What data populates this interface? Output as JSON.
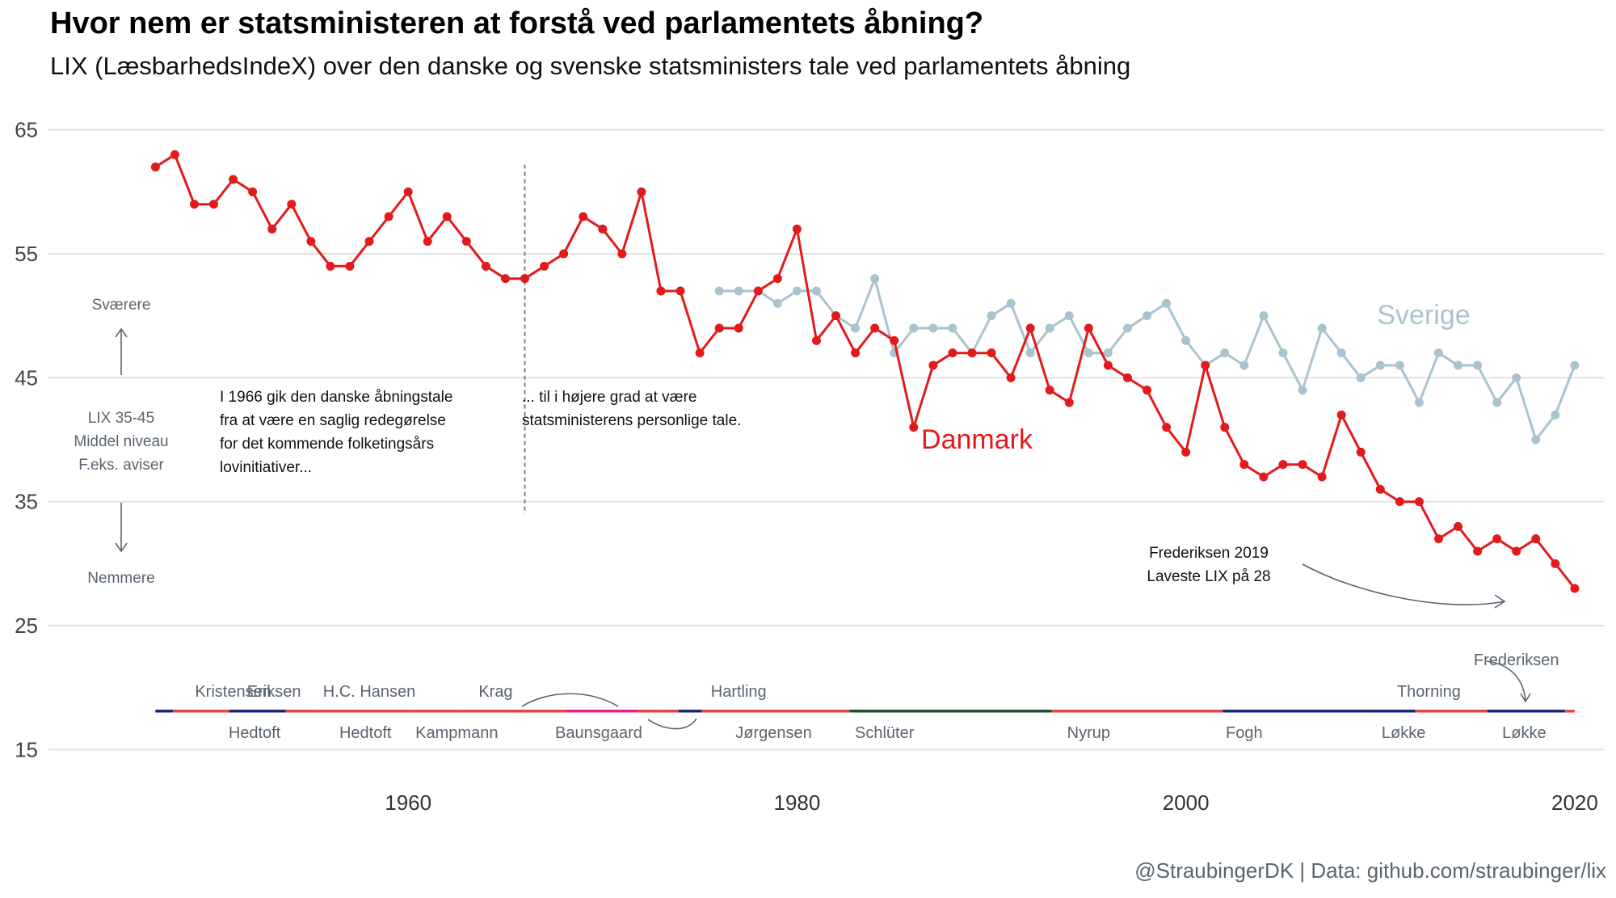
{
  "header": {
    "title": "Hvor nem er statsministeren at forstå ved parlamentets åbning?",
    "subtitle": "LIX (LæsbarhedsIndeX) over den danske og svenske statsministers tale ved parlamentets åbning"
  },
  "caption": "@StraubingerDK | Data: github.com/straubinger/lix",
  "colors": {
    "danmark": "#e31a1c",
    "sverige": "#a9c3cf",
    "social_demokrat": "#e8453c",
    "venstre": "#1a237e",
    "radikale": "#e91e8c",
    "konservative": "#1b4d2e"
  },
  "chart_data": {
    "type": "line",
    "title": "Hvor nem er statsministeren at forstå ved parlamentets åbning?",
    "subtitle": "LIX (LæsbarhedsIndeX) over den danske og svenske statsministers tale ved parlamentets åbning",
    "xlabel": "",
    "ylabel": "",
    "xlim": [
      1941.5,
      2021.5
    ],
    "ylim": [
      13,
      67
    ],
    "y_ticks": [
      15,
      25,
      35,
      45,
      55,
      65
    ],
    "x_ticks": [
      1960,
      1980,
      2000,
      2020
    ],
    "grid": true,
    "series": [
      {
        "name": "Danmark",
        "color": "#e31a1c",
        "x": [
          1947,
          1948,
          1949,
          1950,
          1951,
          1952,
          1953,
          1954,
          1955,
          1956,
          1957,
          1958,
          1959,
          1960,
          1961,
          1962,
          1963,
          1964,
          1965,
          1966,
          1967,
          1968,
          1969,
          1970,
          1971,
          1972,
          1973,
          1974,
          1975,
          1976,
          1977,
          1978,
          1979,
          1980,
          1981,
          1982,
          1983,
          1984,
          1985,
          1986,
          1987,
          1988,
          1989,
          1990,
          1991,
          1992,
          1993,
          1994,
          1995,
          1996,
          1997,
          1998,
          1999,
          2000,
          2001,
          2002,
          2003,
          2004,
          2005,
          2006,
          2007,
          2008,
          2009,
          2010,
          2011,
          2012,
          2013,
          2014,
          2015,
          2016,
          2017,
          2018,
          2019,
          2020
        ],
        "values": [
          62,
          63,
          59,
          59,
          61,
          60,
          57,
          59,
          56,
          54,
          54,
          56,
          58,
          60,
          56,
          58,
          56,
          54,
          53,
          53,
          54,
          55,
          58,
          57,
          55,
          60,
          52,
          52,
          47,
          49,
          49,
          52,
          53,
          57,
          48,
          50,
          47,
          49,
          48,
          41,
          46,
          47,
          47,
          47,
          45,
          49,
          44,
          43,
          49,
          46,
          45,
          44,
          41,
          39,
          46,
          41,
          38,
          37,
          38,
          38,
          37,
          42,
          39,
          36,
          35,
          35,
          32,
          33,
          31,
          32,
          31,
          32,
          30,
          28
        ]
      },
      {
        "name": "Sverige",
        "color": "#a9c3cf",
        "x": [
          1976,
          1977,
          1978,
          1979,
          1980,
          1981,
          1982,
          1983,
          1984,
          1985,
          1986,
          1987,
          1988,
          1989,
          1990,
          1991,
          1992,
          1993,
          1994,
          1995,
          1996,
          1997,
          1998,
          1999,
          2000,
          2001,
          2002,
          2003,
          2004,
          2005,
          2006,
          2007,
          2008,
          2009,
          2010,
          2011,
          2012,
          2013,
          2014,
          2015,
          2016,
          2017,
          2018,
          2019,
          2020
        ],
        "values": [
          52,
          52,
          52,
          51,
          52,
          52,
          50,
          49,
          53,
          47,
          49,
          49,
          49,
          47,
          50,
          51,
          47,
          49,
          50,
          47,
          47,
          49,
          50,
          51,
          48,
          46,
          47,
          46,
          50,
          47,
          44,
          49,
          47,
          45,
          46,
          46,
          43,
          47,
          46,
          46,
          43,
          45,
          40,
          42,
          46
        ]
      }
    ],
    "annotations": {
      "danmark_label": "Danmark",
      "sverige_label": "Sverige",
      "note_left": [
        "I 1966 gik den danske åbningstale",
        "fra at være en saglig redegørelse",
        "for det kommende folketingsårs",
        "lovinitiativer..."
      ],
      "note_right": [
        "... til i højere grad at være",
        "statsministerens personlige tale."
      ],
      "frederiksen_note": [
        "Frederiksen 2019",
        "Laveste LIX på 28"
      ],
      "harder": "Sværere",
      "easier": "Nemmere",
      "lix_range": [
        "LIX 35-45",
        "Middel niveau",
        "F.eks. aviser"
      ],
      "divider_year": 1966
    },
    "prime_ministers": {
      "bar_level": 18.1,
      "segments": [
        {
          "start": 1947.0,
          "end": 1947.9,
          "party": "venstre"
        },
        {
          "start": 1947.9,
          "end": 1950.8,
          "party": "social_demokrat"
        },
        {
          "start": 1950.8,
          "end": 1953.7,
          "party": "venstre"
        },
        {
          "start": 1953.7,
          "end": 1955.1,
          "party": "social_demokrat"
        },
        {
          "start": 1955.1,
          "end": 1960.1,
          "party": "social_demokrat"
        },
        {
          "start": 1960.1,
          "end": 1962.7,
          "party": "social_demokrat"
        },
        {
          "start": 1962.7,
          "end": 1968.1,
          "party": "social_demokrat"
        },
        {
          "start": 1968.1,
          "end": 1971.8,
          "party": "radikale"
        },
        {
          "start": 1971.8,
          "end": 1972.8,
          "party": "social_demokrat"
        },
        {
          "start": 1972.8,
          "end": 1973.9,
          "party": "social_demokrat"
        },
        {
          "start": 1973.9,
          "end": 1975.1,
          "party": "venstre"
        },
        {
          "start": 1975.1,
          "end": 1982.7,
          "party": "social_demokrat"
        },
        {
          "start": 1982.7,
          "end": 1993.1,
          "party": "konservative"
        },
        {
          "start": 1993.1,
          "end": 2001.9,
          "party": "social_demokrat"
        },
        {
          "start": 2001.9,
          "end": 2009.3,
          "party": "venstre"
        },
        {
          "start": 2009.3,
          "end": 2011.8,
          "party": "venstre"
        },
        {
          "start": 2011.8,
          "end": 2015.5,
          "party": "social_demokrat"
        },
        {
          "start": 2015.5,
          "end": 2019.5,
          "party": "venstre"
        },
        {
          "start": 2019.5,
          "end": 2020.0,
          "party": "social_demokrat"
        }
      ],
      "labels_above": [
        {
          "name": "Kristensen",
          "year": 1951.0
        },
        {
          "name": "Eriksen",
          "year": 1953.1
        },
        {
          "name": "H.C. Hansen",
          "year": 1958.0
        },
        {
          "name": "Krag",
          "year": 1964.5
        },
        {
          "name": "Hartling",
          "year": 1977.0
        },
        {
          "name": "Thorning",
          "year": 2012.5
        },
        {
          "name": "Frederiksen",
          "year": 2017.0
        }
      ],
      "labels_below": [
        {
          "name": "Hedtoft",
          "year": 1952.1
        },
        {
          "name": "Hedtoft",
          "year": 1957.8
        },
        {
          "name": "Kampmann",
          "year": 1962.5
        },
        {
          "name": "Baunsgaard",
          "year": 1969.8
        },
        {
          "name": "Jørgensen",
          "year": 1978.8
        },
        {
          "name": "Schlüter",
          "year": 1984.5
        },
        {
          "name": "Nyrup",
          "year": 1995.0
        },
        {
          "name": "Fogh",
          "year": 2003.0
        },
        {
          "name": "Løkke",
          "year": 2011.2
        },
        {
          "name": "Løkke",
          "year": 2017.4
        }
      ]
    }
  }
}
